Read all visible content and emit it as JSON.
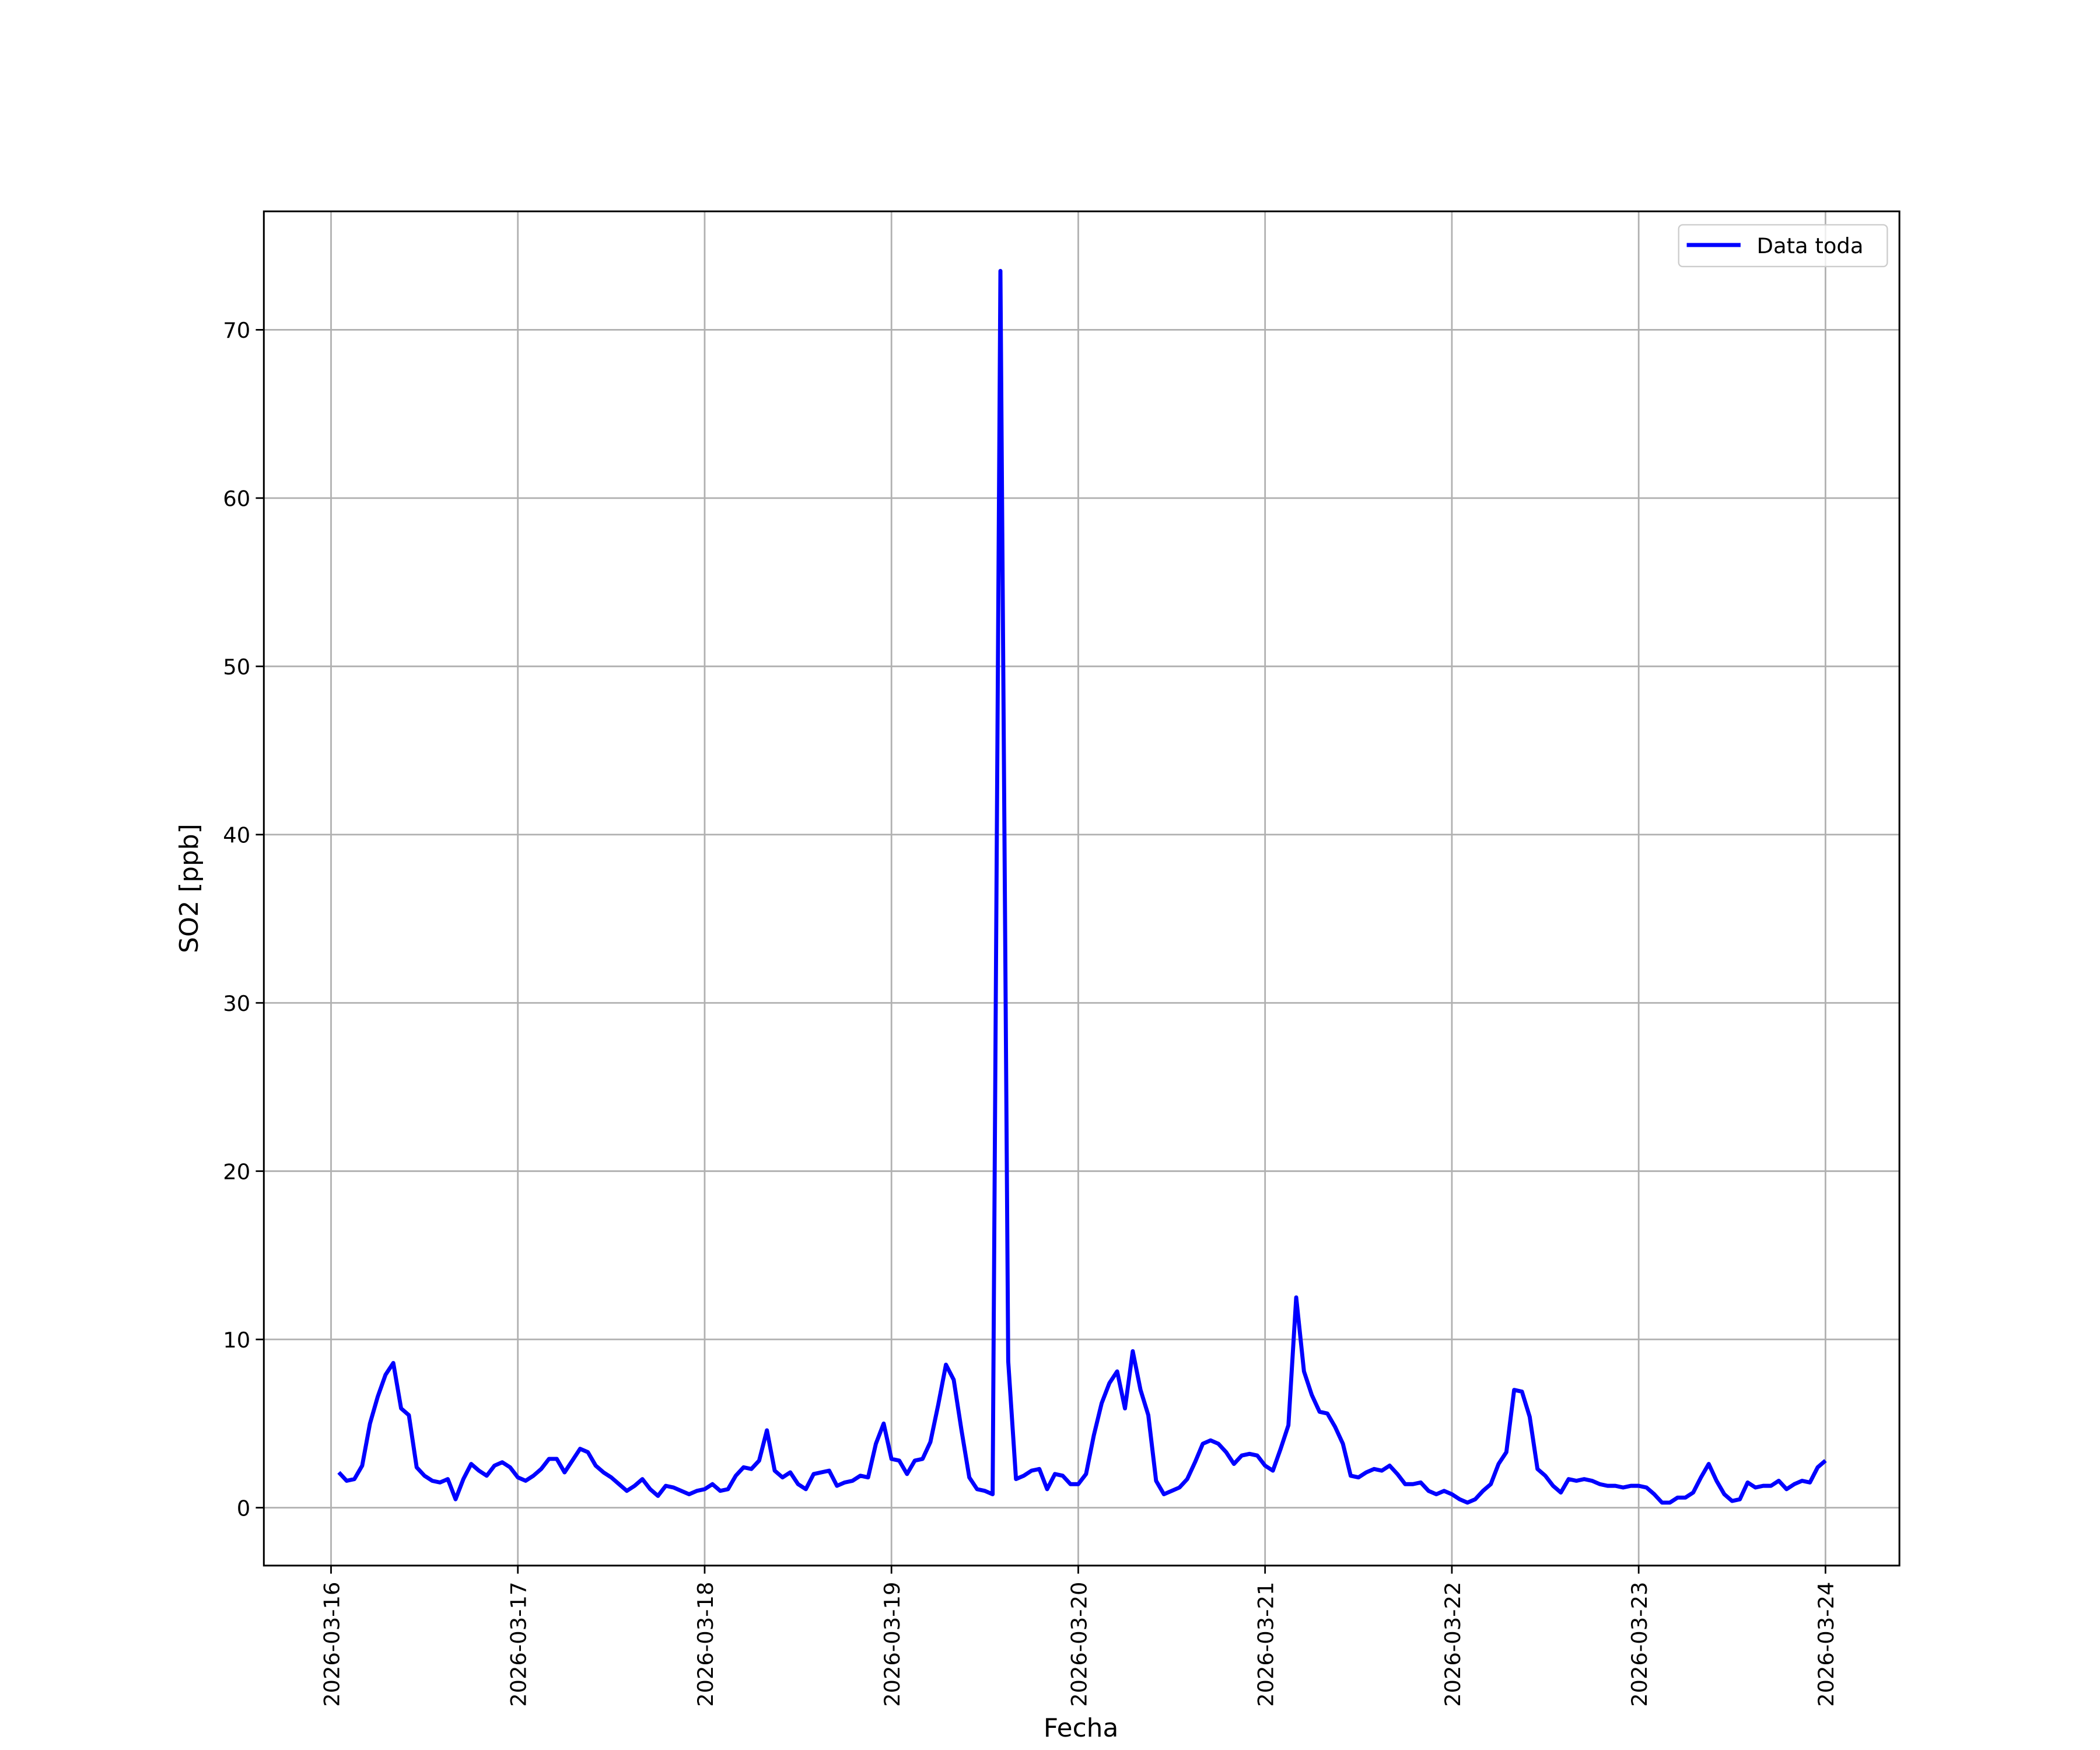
{
  "chart_data": {
    "type": "line",
    "xlabel": "Fecha",
    "ylabel": "SO2 [ppb]",
    "x": [
      "2026-03-16T01:00",
      "2026-03-16T02:00",
      "2026-03-16T03:00",
      "2026-03-16T04:00",
      "2026-03-16T05:00",
      "2026-03-16T06:00",
      "2026-03-16T07:00",
      "2026-03-16T08:00",
      "2026-03-16T09:00",
      "2026-03-16T10:00",
      "2026-03-16T11:00",
      "2026-03-16T12:00",
      "2026-03-16T13:00",
      "2026-03-16T14:00",
      "2026-03-16T15:00",
      "2026-03-16T16:00",
      "2026-03-16T17:00",
      "2026-03-16T18:00",
      "2026-03-16T19:00",
      "2026-03-16T20:00",
      "2026-03-16T21:00",
      "2026-03-16T22:00",
      "2026-03-16T23:00",
      "2026-03-17T00:00",
      "2026-03-17T01:00",
      "2026-03-17T02:00",
      "2026-03-17T03:00",
      "2026-03-17T04:00",
      "2026-03-17T05:00",
      "2026-03-17T06:00",
      "2026-03-17T07:00",
      "2026-03-17T08:00",
      "2026-03-17T09:00",
      "2026-03-17T10:00",
      "2026-03-17T11:00",
      "2026-03-17T12:00",
      "2026-03-17T13:00",
      "2026-03-17T14:00",
      "2026-03-17T15:00",
      "2026-03-17T16:00",
      "2026-03-17T17:00",
      "2026-03-17T18:00",
      "2026-03-17T19:00",
      "2026-03-17T20:00",
      "2026-03-17T21:00",
      "2026-03-17T22:00",
      "2026-03-17T23:00",
      "2026-03-18T00:00",
      "2026-03-18T01:00",
      "2026-03-18T02:00",
      "2026-03-18T03:00",
      "2026-03-18T04:00",
      "2026-03-18T05:00",
      "2026-03-18T06:00",
      "2026-03-18T07:00",
      "2026-03-18T08:00",
      "2026-03-18T09:00",
      "2026-03-18T10:00",
      "2026-03-18T11:00",
      "2026-03-18T12:00",
      "2026-03-18T13:00",
      "2026-03-18T14:00",
      "2026-03-18T15:00",
      "2026-03-18T16:00",
      "2026-03-18T17:00",
      "2026-03-18T18:00",
      "2026-03-18T19:00",
      "2026-03-18T20:00",
      "2026-03-18T21:00",
      "2026-03-18T22:00",
      "2026-03-18T23:00",
      "2026-03-19T00:00",
      "2026-03-19T01:00",
      "2026-03-19T02:00",
      "2026-03-19T03:00",
      "2026-03-19T04:00",
      "2026-03-19T05:00",
      "2026-03-19T06:00",
      "2026-03-19T07:00",
      "2026-03-19T08:00",
      "2026-03-19T09:00",
      "2026-03-19T10:00",
      "2026-03-19T11:00",
      "2026-03-19T12:00",
      "2026-03-19T13:00",
      "2026-03-19T14:00",
      "2026-03-19T15:00",
      "2026-03-19T16:00",
      "2026-03-19T17:00",
      "2026-03-19T18:00",
      "2026-03-19T19:00",
      "2026-03-19T20:00",
      "2026-03-19T21:00",
      "2026-03-19T22:00",
      "2026-03-19T23:00",
      "2026-03-20T00:00",
      "2026-03-20T01:00",
      "2026-03-20T02:00",
      "2026-03-20T03:00",
      "2026-03-20T04:00",
      "2026-03-20T05:00",
      "2026-03-20T06:00",
      "2026-03-20T07:00",
      "2026-03-20T08:00",
      "2026-03-20T09:00",
      "2026-03-20T10:00",
      "2026-03-20T11:00",
      "2026-03-20T12:00",
      "2026-03-20T13:00",
      "2026-03-20T14:00",
      "2026-03-20T15:00",
      "2026-03-20T16:00",
      "2026-03-20T17:00",
      "2026-03-20T18:00",
      "2026-03-20T19:00",
      "2026-03-20T20:00",
      "2026-03-20T21:00",
      "2026-03-20T22:00",
      "2026-03-20T23:00",
      "2026-03-21T00:00",
      "2026-03-21T01:00",
      "2026-03-21T02:00",
      "2026-03-21T03:00",
      "2026-03-21T04:00",
      "2026-03-21T05:00",
      "2026-03-21T06:00",
      "2026-03-21T07:00",
      "2026-03-21T08:00",
      "2026-03-21T09:00",
      "2026-03-21T10:00",
      "2026-03-21T11:00",
      "2026-03-21T12:00",
      "2026-03-21T13:00",
      "2026-03-21T14:00",
      "2026-03-21T15:00",
      "2026-03-21T16:00",
      "2026-03-21T17:00",
      "2026-03-21T18:00",
      "2026-03-21T19:00",
      "2026-03-21T20:00",
      "2026-03-21T21:00",
      "2026-03-21T22:00",
      "2026-03-21T23:00",
      "2026-03-22T00:00",
      "2026-03-22T01:00",
      "2026-03-22T02:00",
      "2026-03-22T03:00",
      "2026-03-22T04:00",
      "2026-03-22T05:00",
      "2026-03-22T06:00",
      "2026-03-22T07:00",
      "2026-03-22T08:00",
      "2026-03-22T09:00",
      "2026-03-22T10:00",
      "2026-03-22T11:00",
      "2026-03-22T12:00",
      "2026-03-22T13:00",
      "2026-03-22T14:00",
      "2026-03-22T15:00",
      "2026-03-22T16:00",
      "2026-03-22T17:00",
      "2026-03-22T18:00",
      "2026-03-22T19:00",
      "2026-03-22T20:00",
      "2026-03-22T21:00",
      "2026-03-22T22:00",
      "2026-03-22T23:00",
      "2026-03-23T00:00",
      "2026-03-23T01:00",
      "2026-03-23T02:00",
      "2026-03-23T03:00",
      "2026-03-23T04:00",
      "2026-03-23T05:00",
      "2026-03-23T06:00",
      "2026-03-23T07:00",
      "2026-03-23T08:00",
      "2026-03-23T09:00",
      "2026-03-23T10:00",
      "2026-03-23T11:00",
      "2026-03-23T12:00",
      "2026-03-23T13:00",
      "2026-03-23T14:00",
      "2026-03-23T15:00",
      "2026-03-23T16:00",
      "2026-03-23T17:00",
      "2026-03-23T18:00",
      "2026-03-23T19:00",
      "2026-03-23T20:00",
      "2026-03-23T21:00",
      "2026-03-23T22:00",
      "2026-03-23T23:00",
      "2026-03-24T00:00"
    ],
    "series": [
      {
        "name": "Data toda",
        "color": "#0000ff",
        "values": [
          2.1,
          1.6,
          1.7,
          2.5,
          5.0,
          6.6,
          7.9,
          8.6,
          5.9,
          5.5,
          2.4,
          1.9,
          1.6,
          1.5,
          1.7,
          0.5,
          1.7,
          2.6,
          2.2,
          1.9,
          2.5,
          2.7,
          2.4,
          1.8,
          1.6,
          1.9,
          2.3,
          2.9,
          2.9,
          2.1,
          2.8,
          3.5,
          3.3,
          2.5,
          2.1,
          1.8,
          1.4,
          1.0,
          1.3,
          1.7,
          1.1,
          0.7,
          1.3,
          1.2,
          1.0,
          0.8,
          1.0,
          1.1,
          1.4,
          1.0,
          1.1,
          1.9,
          2.4,
          2.3,
          2.8,
          4.6,
          2.2,
          1.8,
          2.1,
          1.4,
          1.1,
          2.0,
          2.1,
          2.2,
          1.3,
          1.5,
          1.6,
          1.9,
          1.8,
          3.8,
          5.0,
          2.9,
          2.8,
          2.0,
          2.8,
          2.9,
          3.9,
          6.1,
          8.5,
          7.6,
          4.6,
          1.8,
          1.1,
          1.0,
          0.8,
          73.5,
          8.7,
          1.7,
          1.9,
          2.2,
          2.3,
          1.1,
          2.0,
          1.9,
          1.4,
          1.4,
          2.0,
          4.3,
          6.2,
          7.4,
          8.1,
          5.9,
          9.3,
          7.0,
          5.5,
          1.6,
          0.8,
          1.0,
          1.2,
          1.7,
          2.7,
          3.8,
          4.0,
          3.8,
          3.3,
          2.6,
          3.1,
          3.2,
          3.1,
          2.5,
          2.2,
          3.5,
          4.9,
          12.5,
          8.1,
          6.7,
          5.7,
          5.6,
          4.8,
          3.8,
          1.9,
          1.8,
          2.1,
          2.3,
          2.2,
          2.5,
          2.0,
          1.4,
          1.4,
          1.5,
          1.0,
          0.8,
          1.0,
          0.8,
          0.5,
          0.3,
          0.5,
          1.0,
          1.4,
          2.6,
          3.3,
          7.0,
          6.9,
          5.4,
          2.3,
          1.9,
          1.3,
          0.9,
          1.7,
          1.6,
          1.7,
          1.6,
          1.4,
          1.3,
          1.3,
          1.2,
          1.3,
          1.3,
          1.2,
          0.8,
          0.3,
          0.3,
          0.6,
          0.6,
          0.9,
          1.8,
          2.6,
          1.6,
          0.8,
          0.4,
          0.5,
          1.5,
          1.2,
          1.3,
          1.3,
          1.6,
          1.1,
          1.4,
          1.6,
          1.5,
          2.4,
          2.8
        ]
      }
    ],
    "xlim": [
      "2026-03-15T15:22",
      "2026-03-24T09:30"
    ],
    "xticks": [
      "2026-03-16",
      "2026-03-17",
      "2026-03-18",
      "2026-03-19",
      "2026-03-20",
      "2026-03-21",
      "2026-03-22",
      "2026-03-23",
      "2026-03-24"
    ],
    "ylim": [
      -3.44,
      77.04
    ],
    "yticks": [
      0,
      10,
      20,
      30,
      40,
      50,
      60,
      70
    ],
    "grid": true,
    "legend": "upper right"
  }
}
